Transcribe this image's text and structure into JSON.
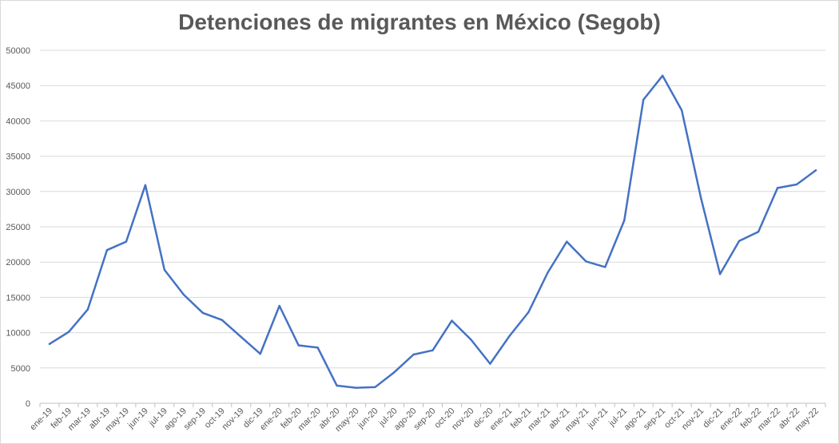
{
  "chart_data": {
    "type": "line",
    "title": "Detenciones de migrantes en México (Segob)",
    "xlabel": "",
    "ylabel": "",
    "ylim": [
      0,
      50000
    ],
    "yticks": [
      0,
      5000,
      10000,
      15000,
      20000,
      25000,
      30000,
      35000,
      40000,
      45000,
      50000
    ],
    "grid": true,
    "legend": "none",
    "line_color": "#4472c4",
    "categories": [
      "ene-19",
      "feb-19",
      "mar-19",
      "abr-19",
      "may-19",
      "jun-19",
      "jul-19",
      "ago-19",
      "sep-19",
      "oct-19",
      "nov-19",
      "dic-19",
      "ene-20",
      "feb-20",
      "mar-20",
      "abr-20",
      "may-20",
      "jun-20",
      "jul-20",
      "ago-20",
      "sep-20",
      "oct-20",
      "nov-20",
      "dic-20",
      "ene-21",
      "feb-21",
      "mar-21",
      "abr-21",
      "may-21",
      "jun-21",
      "jul-21",
      "ago-21",
      "sep-21",
      "oct-21",
      "nov-21",
      "dic-21",
      "ene-22",
      "feb-22",
      "mar-22",
      "abr-22",
      "may-22"
    ],
    "series": [
      {
        "values": [
          8400,
          10100,
          13300,
          21700,
          22900,
          30900,
          18900,
          15400,
          12800,
          11800,
          9400,
          7000,
          13800,
          8200,
          7900,
          2500,
          2200,
          2300,
          4400,
          6900,
          7500,
          11700,
          9000,
          5600,
          9500,
          12900,
          18500,
          22900,
          20100,
          19300,
          25900,
          43000,
          46400,
          41500,
          29100,
          18300,
          23000,
          24300,
          30500,
          31000,
          33000
        ]
      }
    ]
  }
}
